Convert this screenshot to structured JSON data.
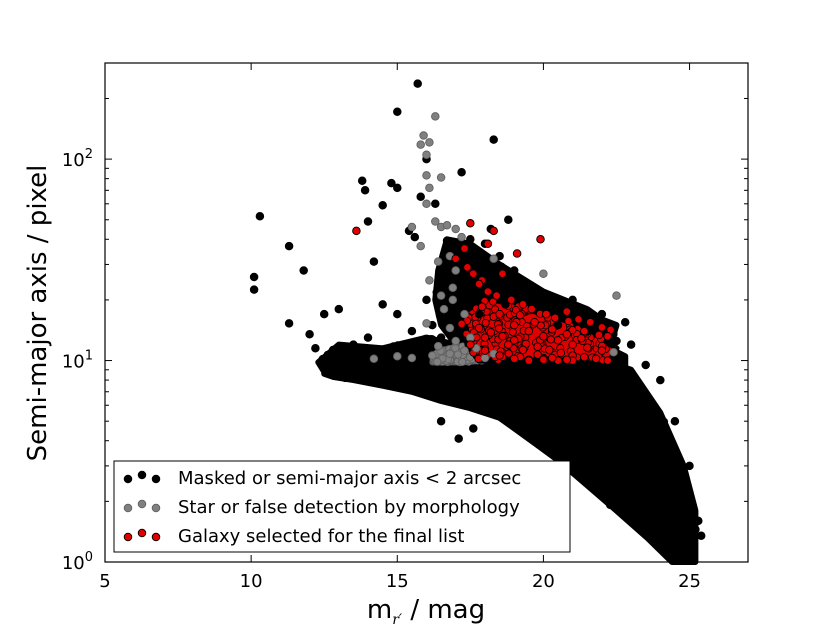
{
  "chart_data": {
    "type": "scatter",
    "xlabel": "m",
    "xlabel_subscript": "r′",
    "xlabel_unit": " / mag",
    "ylabel": "Semi-major axis / pixel",
    "xlim": [
      5,
      27
    ],
    "ylim": [
      1,
      300
    ],
    "y_scale": "log",
    "x_ticks": [
      5,
      10,
      15,
      20,
      25
    ],
    "y_ticks": [
      {
        "value": 1,
        "base": "10",
        "exp": "0"
      },
      {
        "value": 10,
        "base": "10",
        "exp": "1"
      },
      {
        "value": 100,
        "base": "10",
        "exp": "2"
      }
    ],
    "grid": false,
    "legend_position": "lower-left",
    "series": [
      {
        "name": "Masked or semi-major axis < 2 arcsec",
        "color": "#000000",
        "edge": "#000000",
        "points": [
          [
            10.3,
            52
          ],
          [
            10.1,
            26
          ],
          [
            10.1,
            22.5
          ],
          [
            11.3,
            37
          ],
          [
            11.8,
            28
          ],
          [
            11.3,
            15.3
          ],
          [
            13.8,
            78
          ],
          [
            13.9,
            70
          ],
          [
            14.5,
            59
          ],
          [
            14.8,
            76
          ],
          [
            15.0,
            172
          ],
          [
            15.0,
            72
          ],
          [
            15.7,
            237
          ],
          [
            14.0,
            49
          ],
          [
            14.2,
            31
          ],
          [
            15.4,
            44
          ],
          [
            15.6,
            41
          ],
          [
            15.8,
            65
          ],
          [
            16.0,
            100
          ],
          [
            16.3,
            60
          ],
          [
            17.2,
            86
          ],
          [
            18.3,
            125
          ],
          [
            18.8,
            50
          ],
          [
            18.2,
            45
          ],
          [
            16.0,
            20
          ],
          [
            15.0,
            17
          ],
          [
            14.5,
            19
          ],
          [
            13.0,
            18
          ],
          [
            12.5,
            17
          ],
          [
            12.2,
            11.5
          ],
          [
            12.8,
            9
          ],
          [
            13.5,
            9.5
          ],
          [
            16.5,
            5.0
          ],
          [
            17.1,
            4.1
          ],
          [
            17.6,
            4.6
          ],
          [
            19.8,
            20
          ],
          [
            20.1,
            17
          ],
          [
            21.0,
            20
          ],
          [
            22.0,
            17
          ],
          [
            22.8,
            15.5
          ],
          [
            23.0,
            12
          ],
          [
            24.8,
            1.25
          ],
          [
            25.2,
            1.45
          ],
          [
            24.2,
            2.2
          ],
          [
            23.8,
            2.7
          ],
          [
            25.3,
            1.6
          ],
          [
            25.4,
            1.35
          ],
          [
            24.9,
            1.1
          ],
          [
            18.0,
            38
          ],
          [
            17.5,
            40
          ],
          [
            18.5,
            33
          ],
          [
            16.8,
            30
          ],
          [
            17.0,
            25
          ],
          [
            19.0,
            28
          ],
          [
            19.5,
            22
          ],
          [
            16.2,
            15
          ],
          [
            17.8,
            17
          ],
          [
            18.7,
            19
          ],
          [
            14.0,
            13
          ],
          [
            12.0,
            13.5
          ],
          [
            13.5,
            12
          ],
          [
            15.5,
            14.0
          ],
          [
            16.5,
            13
          ],
          [
            20.5,
            15
          ],
          [
            21.5,
            14
          ],
          [
            22.5,
            12.5
          ],
          [
            23.5,
            9.5
          ],
          [
            24.0,
            8
          ],
          [
            24.5,
            5
          ],
          [
            25.0,
            3
          ],
          [
            24.6,
            2.0
          ]
        ]
      },
      {
        "name": "Star or false detection by morphology",
        "color": "#808080",
        "edge": "#606060",
        "points": [
          [
            15.9,
            131
          ],
          [
            15.8,
            118
          ],
          [
            16.3,
            163
          ],
          [
            16.1,
            121
          ],
          [
            16.0,
            83
          ],
          [
            16.0,
            105
          ],
          [
            16.5,
            81
          ],
          [
            16.1,
            72
          ],
          [
            16.0,
            60
          ],
          [
            15.5,
            46
          ],
          [
            15.8,
            37
          ],
          [
            16.3,
            49
          ],
          [
            16.5,
            46
          ],
          [
            16.7,
            47
          ],
          [
            17.0,
            45
          ],
          [
            17.2,
            41
          ],
          [
            16.4,
            31
          ],
          [
            16.8,
            33
          ],
          [
            16.1,
            25
          ],
          [
            16.5,
            21
          ],
          [
            16.9,
            20
          ],
          [
            16.6,
            18
          ],
          [
            17.3,
            17
          ],
          [
            16.0,
            15.3
          ],
          [
            16.8,
            14.5
          ],
          [
            22.5,
            21
          ],
          [
            20.0,
            27
          ],
          [
            18.3,
            32
          ],
          [
            17.0,
            28
          ],
          [
            16.9,
            23
          ],
          [
            14.2,
            10.2
          ],
          [
            15.0,
            10.5
          ],
          [
            15.5,
            10.3
          ],
          [
            16.2,
            10.6
          ],
          [
            16.8,
            10.8
          ],
          [
            17.3,
            11.2
          ],
          [
            17.7,
            11.5
          ],
          [
            18.0,
            10.3
          ],
          [
            18.3,
            10.8
          ],
          [
            17.0,
            12.5
          ],
          [
            16.4,
            11.8
          ],
          [
            17.5,
            13.0
          ],
          [
            22.4,
            11.0
          ]
        ]
      },
      {
        "name": "Galaxy selected for the final list",
        "color": "#e00000",
        "edge": "#000000",
        "points": [
          [
            13.6,
            44
          ],
          [
            17.5,
            48
          ],
          [
            17.0,
            32
          ],
          [
            17.4,
            29
          ],
          [
            17.6,
            27
          ],
          [
            17.9,
            25
          ],
          [
            18.1,
            22
          ],
          [
            18.6,
            27
          ],
          [
            19.1,
            34
          ],
          [
            19.9,
            40
          ],
          [
            18.1,
            38
          ],
          [
            18.3,
            44
          ],
          [
            17.3,
            36
          ],
          [
            17.8,
            24
          ],
          [
            18.4,
            21
          ],
          [
            18.9,
            20
          ],
          [
            19.3,
            19
          ],
          [
            19.6,
            18
          ],
          [
            20.1,
            17
          ],
          [
            20.4,
            16.3
          ],
          [
            20.8,
            17.5
          ],
          [
            21.2,
            16
          ],
          [
            21.6,
            15.5
          ],
          [
            22.0,
            14.6
          ],
          [
            22.3,
            14.2
          ],
          [
            21.4,
            14.0
          ],
          [
            21.9,
            13.4
          ],
          [
            22.2,
            13.2
          ],
          [
            17.2,
            15.2
          ],
          [
            17.8,
            14.5
          ],
          [
            18.2,
            13.8
          ],
          [
            18.6,
            13.2
          ],
          [
            19.0,
            12.6
          ],
          [
            19.4,
            12.1
          ],
          [
            19.8,
            11.7
          ],
          [
            20.2,
            11.3
          ],
          [
            20.6,
            10.9
          ],
          [
            21.0,
            10.6
          ],
          [
            21.4,
            10.4
          ],
          [
            21.8,
            10.2
          ],
          [
            17.5,
            12.0
          ],
          [
            18.0,
            11.2
          ],
          [
            18.5,
            10.6
          ],
          [
            19.0,
            10.2
          ],
          [
            19.5,
            10.0
          ],
          [
            20.0,
            10.1
          ],
          [
            20.5,
            10.0
          ],
          [
            21.0,
            10.0
          ],
          [
            22.2,
            10.0
          ],
          [
            18.3,
            16.5
          ],
          [
            19.0,
            15.0
          ],
          [
            19.5,
            14.0
          ],
          [
            20.0,
            13.2
          ],
          [
            20.5,
            12.6
          ],
          [
            21.0,
            12.0
          ],
          [
            21.5,
            11.6
          ],
          [
            22.0,
            11.2
          ],
          [
            17.9,
            18.5
          ],
          [
            18.5,
            17.0
          ],
          [
            19.2,
            16.8
          ],
          [
            19.7,
            15.5
          ],
          [
            20.3,
            14.3
          ],
          [
            20.8,
            13.5
          ],
          [
            21.3,
            12.9
          ],
          [
            18.0,
            13.0
          ],
          [
            18.8,
            12.0
          ],
          [
            19.3,
            11.3
          ],
          [
            19.8,
            10.7
          ],
          [
            20.3,
            10.3
          ],
          [
            20.8,
            10.1
          ]
        ]
      }
    ],
    "dense_regions": [
      {
        "series": 0,
        "hull": [
          [
            12.5,
            8.6
          ],
          [
            13.5,
            9.4
          ],
          [
            15.0,
            9.4
          ],
          [
            17.0,
            9.0
          ],
          [
            20.0,
            9.0
          ],
          [
            22.5,
            9.5
          ],
          [
            23.0,
            9.0
          ],
          [
            24.0,
            5.5
          ],
          [
            24.8,
            3.0
          ],
          [
            25.2,
            1.8
          ],
          [
            25.2,
            1.0
          ],
          [
            24.4,
            1.0
          ],
          [
            23.6,
            1.3
          ],
          [
            22.5,
            1.8
          ],
          [
            21.5,
            2.4
          ],
          [
            20.5,
            3.2
          ],
          [
            19.8,
            3.8
          ],
          [
            18.5,
            5.2
          ],
          [
            17.5,
            5.8
          ],
          [
            16.5,
            6.3
          ],
          [
            15.5,
            7.0
          ],
          [
            14.5,
            7.5
          ],
          [
            13.5,
            8.0
          ],
          [
            12.8,
            8.3
          ]
        ]
      },
      {
        "series": 0,
        "hull": [
          [
            12.3,
            9.8
          ],
          [
            13.0,
            12.0
          ],
          [
            14.5,
            11.5
          ],
          [
            16.0,
            13.0
          ],
          [
            17.0,
            12.0
          ],
          [
            20.0,
            12.0
          ],
          [
            22.0,
            12.0
          ],
          [
            22.8,
            10.5
          ],
          [
            22.8,
            9.0
          ],
          [
            20.0,
            8.8
          ],
          [
            17.0,
            8.8
          ],
          [
            15.0,
            9.2
          ],
          [
            13.5,
            9.2
          ],
          [
            12.5,
            8.8
          ]
        ]
      },
      {
        "series": 0,
        "hull": [
          [
            16.7,
            40
          ],
          [
            17.5,
            38
          ],
          [
            18.5,
            30
          ],
          [
            20.0,
            22
          ],
          [
            21.5,
            18
          ],
          [
            22.0,
            16
          ],
          [
            22.5,
            15
          ],
          [
            22.3,
            12
          ],
          [
            20.0,
            10
          ],
          [
            18.0,
            10
          ],
          [
            17.0,
            12
          ],
          [
            16.5,
            15
          ],
          [
            16.3,
            20
          ],
          [
            16.4,
            28
          ]
        ]
      },
      {
        "series": 1,
        "hull": [
          [
            16.2,
            9.8
          ],
          [
            17.2,
            9.8
          ],
          [
            18.0,
            10.0
          ],
          [
            18.0,
            12.0
          ],
          [
            17.2,
            11.8
          ],
          [
            16.4,
            11.2
          ]
        ]
      },
      {
        "series": 2,
        "hull": [
          [
            17.3,
            17.5
          ],
          [
            18.0,
            20.5
          ],
          [
            19.0,
            19.0
          ],
          [
            20.0,
            17.0
          ],
          [
            21.0,
            15.5
          ],
          [
            22.0,
            13.0
          ],
          [
            22.5,
            11.5
          ],
          [
            22.3,
            10.0
          ],
          [
            20.0,
            10.0
          ],
          [
            17.8,
            10.0
          ],
          [
            17.4,
            12.0
          ]
        ]
      }
    ]
  }
}
